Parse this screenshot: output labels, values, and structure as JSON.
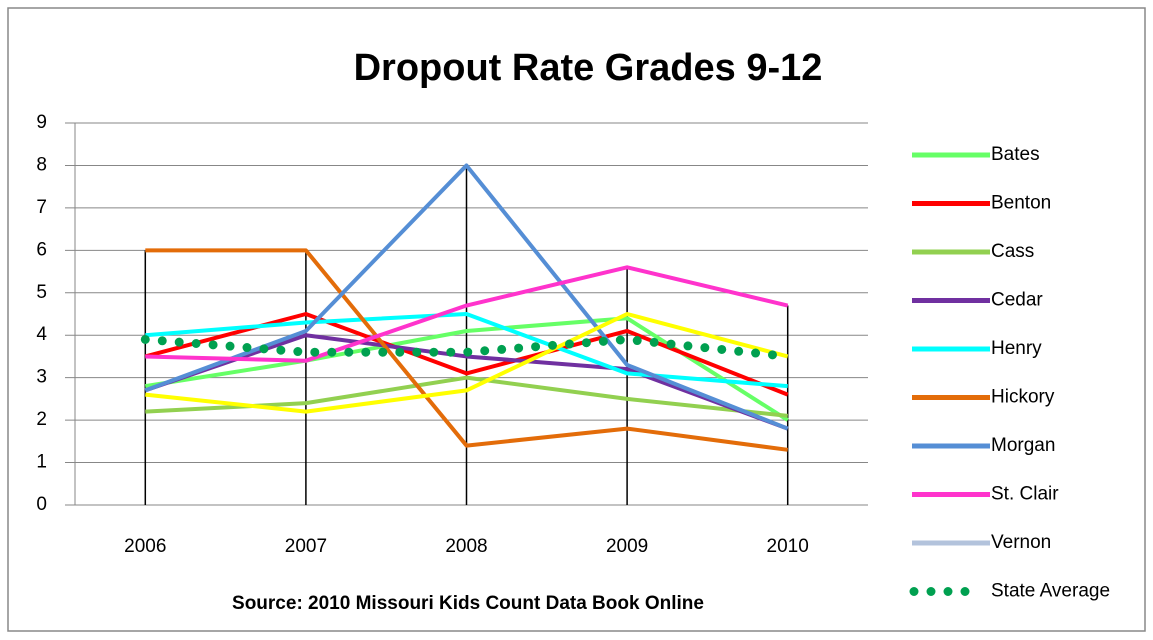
{
  "chart_data": {
    "type": "line",
    "title": "Dropout Rate Grades 9-12",
    "subtitle": "Source:  2010 Missouri Kids Count Data Book Online",
    "categories": [
      "2006",
      "2007",
      "2008",
      "2009",
      "2010"
    ],
    "ylim": [
      0,
      9
    ],
    "yticks": [
      0,
      1,
      2,
      3,
      4,
      5,
      6,
      7,
      8,
      9
    ],
    "grid": true,
    "drop_lines": true,
    "legend": "right",
    "series": [
      {
        "name": "Bates",
        "color": "#66ff66",
        "values": [
          2.8,
          3.4,
          4.1,
          4.4,
          2.0
        ]
      },
      {
        "name": "Benton",
        "color": "#ff0000",
        "values": [
          3.5,
          4.5,
          3.1,
          4.1,
          2.6
        ]
      },
      {
        "name": "Cass",
        "color": "#92d050",
        "values": [
          2.2,
          2.4,
          3.0,
          2.5,
          2.1
        ]
      },
      {
        "name": "Cedar",
        "color": "#7030a0",
        "values": [
          2.7,
          4.0,
          3.5,
          3.2,
          1.8
        ]
      },
      {
        "name": "Henry",
        "color": "#00ffff",
        "values": [
          4.0,
          4.3,
          4.5,
          3.1,
          2.8
        ]
      },
      {
        "name": "Hickory",
        "color": "#e36c09",
        "values": [
          6.0,
          6.0,
          1.4,
          1.8,
          1.3
        ]
      },
      {
        "name": "Morgan",
        "color": "#558ed5",
        "values": [
          2.7,
          4.1,
          8.0,
          3.3,
          1.8
        ]
      },
      {
        "name": "St. Clair",
        "color": "#ff33cc",
        "values": [
          3.5,
          3.4,
          4.7,
          5.6,
          4.7
        ]
      },
      {
        "name": "Vernon",
        "color": "#ffff00",
        "legend_color": "#b3c3dc",
        "values": [
          2.6,
          2.2,
          2.7,
          4.5,
          3.5
        ]
      },
      {
        "name": "State Average",
        "color": "#00a050",
        "dotted": true,
        "values": [
          3.9,
          3.6,
          3.6,
          3.9,
          3.5
        ]
      }
    ]
  }
}
